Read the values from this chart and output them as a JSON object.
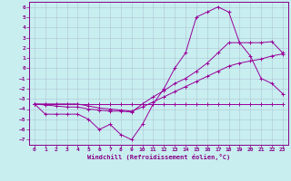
{
  "xlabel": "Windchill (Refroidissement éolien,°C)",
  "bg_color": "#c8eef0",
  "line_color": "#990099",
  "grid_color": "#aabbcc",
  "xlim": [
    -0.5,
    23.5
  ],
  "ylim": [
    -7.5,
    6.5
  ],
  "xticks": [
    0,
    1,
    2,
    3,
    4,
    5,
    6,
    7,
    8,
    9,
    10,
    11,
    12,
    13,
    14,
    15,
    16,
    17,
    18,
    19,
    20,
    21,
    22,
    23
  ],
  "yticks": [
    -7,
    -6,
    -5,
    -4,
    -3,
    -2,
    -1,
    0,
    1,
    2,
    3,
    4,
    5,
    6
  ],
  "curves": [
    {
      "x": [
        0,
        1,
        2,
        3,
        4,
        5,
        6,
        7,
        8,
        9,
        10,
        11,
        12,
        13,
        14,
        15,
        16,
        17,
        18,
        19,
        20,
        21,
        22,
        23
      ],
      "y": [
        -3.5,
        -3.5,
        -3.5,
        -3.5,
        -3.5,
        -3.5,
        -3.5,
        -3.5,
        -3.5,
        -3.5,
        -3.5,
        -3.5,
        -3.5,
        -3.5,
        -3.5,
        -3.5,
        -3.5,
        -3.5,
        -3.5,
        -3.5,
        -3.5,
        -3.5,
        -3.5,
        -3.5
      ]
    },
    {
      "x": [
        0,
        1,
        2,
        3,
        4,
        5,
        6,
        7,
        8,
        9,
        10,
        11,
        12,
        13,
        14,
        15,
        16,
        17,
        18,
        19,
        20,
        21,
        22,
        23
      ],
      "y": [
        -3.5,
        -3.5,
        -3.5,
        -3.5,
        -3.5,
        -3.7,
        -3.9,
        -4.0,
        -4.1,
        -4.2,
        -3.8,
        -3.3,
        -2.8,
        -2.3,
        -1.8,
        -1.3,
        -0.8,
        -0.3,
        0.2,
        0.5,
        0.7,
        0.9,
        1.2,
        1.4
      ]
    },
    {
      "x": [
        0,
        1,
        2,
        3,
        4,
        5,
        6,
        7,
        8,
        9,
        10,
        11,
        12,
        13,
        14,
        15,
        16,
        17,
        18,
        19,
        20,
        21,
        22,
        23
      ],
      "y": [
        -3.5,
        -4.5,
        -4.5,
        -4.5,
        -4.5,
        -5.0,
        -6.0,
        -5.5,
        -6.5,
        -7.0,
        -5.5,
        -3.5,
        -2.0,
        0.0,
        1.5,
        5.0,
        5.5,
        6.0,
        5.5,
        2.5,
        1.2,
        -1.0,
        -1.5,
        -2.5
      ]
    },
    {
      "x": [
        0,
        1,
        2,
        3,
        4,
        5,
        6,
        7,
        8,
        9,
        10,
        11,
        12,
        13,
        14,
        15,
        16,
        17,
        18,
        19,
        20,
        21,
        22,
        23
      ],
      "y": [
        -3.5,
        -3.6,
        -3.7,
        -3.8,
        -3.8,
        -4.0,
        -4.1,
        -4.2,
        -4.2,
        -4.3,
        -3.5,
        -2.8,
        -2.2,
        -1.5,
        -1.0,
        -0.3,
        0.5,
        1.5,
        2.5,
        2.5,
        2.5,
        2.5,
        2.6,
        1.5
      ]
    }
  ]
}
